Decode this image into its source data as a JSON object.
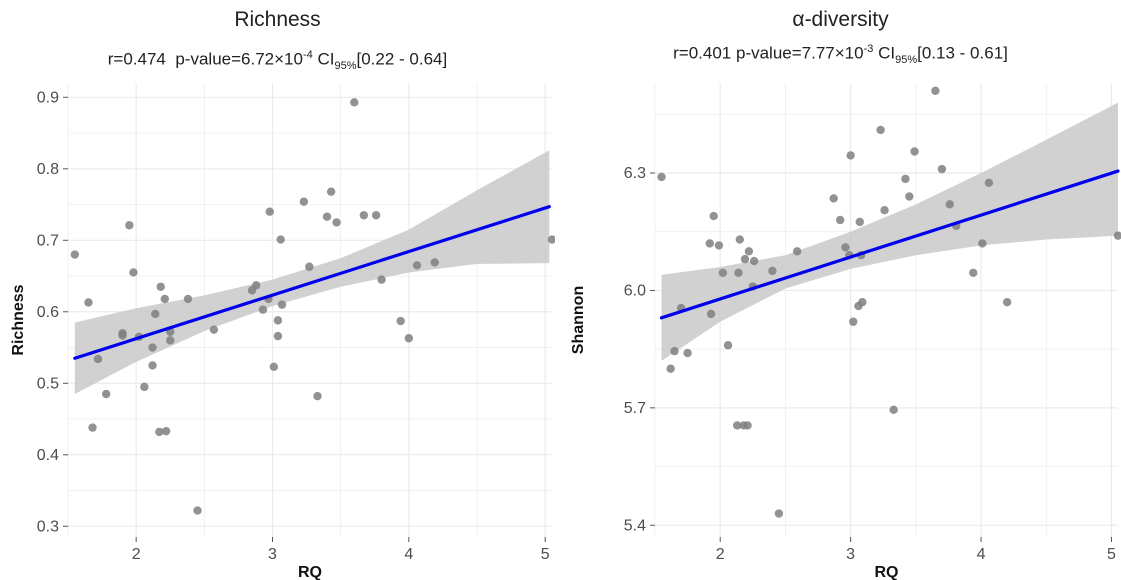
{
  "chart_data": [
    {
      "type": "scatter",
      "title": "Richness",
      "stats": {
        "r": "r=0.474",
        "p_label": "p-value=6.72×10",
        "p_exp": "-4",
        "ci_label": "CI",
        "ci_sub": "95%",
        "ci_range": "[0.22 - 0.64]"
      },
      "xlabel": "RQ",
      "ylabel": "Richness",
      "xlim": [
        1.5,
        5.05
      ],
      "ylim": [
        0.285,
        0.92
      ],
      "xticks": [
        2,
        3,
        4,
        5
      ],
      "xtick_labels": [
        "2",
        "3",
        "4",
        "5"
      ],
      "yticks": [
        0.3,
        0.4,
        0.5,
        0.6,
        0.7,
        0.8,
        0.9
      ],
      "ytick_labels": [
        "0.3",
        "0.4",
        "0.5",
        "0.6",
        "0.7",
        "0.8",
        "0.9"
      ],
      "grid": true,
      "points": [
        [
          1.55,
          0.68
        ],
        [
          1.65,
          0.613
        ],
        [
          1.68,
          0.438
        ],
        [
          1.72,
          0.534
        ],
        [
          1.78,
          0.485
        ],
        [
          1.9,
          0.567
        ],
        [
          1.9,
          0.57
        ],
        [
          1.95,
          0.721
        ],
        [
          1.98,
          0.655
        ],
        [
          2.02,
          0.565
        ],
        [
          2.06,
          0.495
        ],
        [
          2.12,
          0.55
        ],
        [
          2.12,
          0.525
        ],
        [
          2.14,
          0.597
        ],
        [
          2.17,
          0.432
        ],
        [
          2.18,
          0.635
        ],
        [
          2.21,
          0.618
        ],
        [
          2.22,
          0.433
        ],
        [
          2.25,
          0.572
        ],
        [
          2.25,
          0.56
        ],
        [
          2.38,
          0.618
        ],
        [
          2.45,
          0.322
        ],
        [
          2.57,
          0.575
        ],
        [
          2.85,
          0.63
        ],
        [
          2.88,
          0.637
        ],
        [
          2.93,
          0.603
        ],
        [
          2.97,
          0.618
        ],
        [
          2.98,
          0.74
        ],
        [
          3.01,
          0.523
        ],
        [
          3.04,
          0.588
        ],
        [
          3.04,
          0.566
        ],
        [
          3.06,
          0.701
        ],
        [
          3.07,
          0.61
        ],
        [
          3.23,
          0.754
        ],
        [
          3.27,
          0.663
        ],
        [
          3.33,
          0.482
        ],
        [
          3.4,
          0.733
        ],
        [
          3.43,
          0.768
        ],
        [
          3.47,
          0.725
        ],
        [
          3.6,
          0.893
        ],
        [
          3.67,
          0.735
        ],
        [
          3.76,
          0.735
        ],
        [
          3.8,
          0.645
        ],
        [
          3.94,
          0.587
        ],
        [
          4.0,
          0.563
        ],
        [
          4.06,
          0.665
        ],
        [
          4.19,
          0.669
        ],
        [
          5.05,
          0.701
        ]
      ],
      "fit": {
        "x": [
          1.55,
          5.03
        ],
        "y": [
          0.535,
          0.747
        ]
      },
      "ci_band": {
        "x": [
          1.55,
          2.0,
          2.5,
          3.0,
          3.5,
          4.0,
          4.5,
          5.03
        ],
        "lower": [
          0.485,
          0.53,
          0.573,
          0.608,
          0.635,
          0.655,
          0.667,
          0.668
        ],
        "upper": [
          0.585,
          0.605,
          0.623,
          0.645,
          0.675,
          0.715,
          0.77,
          0.826
        ]
      }
    },
    {
      "type": "scatter",
      "title": "α-diversity",
      "stats": {
        "r": "r=0.401",
        "p_label": "p-value=7.77×10",
        "p_exp": "-3",
        "ci_label": "CI",
        "ci_sub": "95%",
        "ci_range": "[0.13 - 0.61]"
      },
      "xlabel": "RQ",
      "ylabel": "Shannon",
      "xlim": [
        1.5,
        5.05
      ],
      "ylim": [
        5.37,
        6.53
      ],
      "xticks": [
        2,
        3,
        4,
        5
      ],
      "xtick_labels": [
        "2",
        "3",
        "4",
        "5"
      ],
      "yticks": [
        5.4,
        5.7,
        6.0,
        6.3
      ],
      "ytick_labels": [
        "5.4",
        "5.7",
        "6.0",
        "6.3"
      ],
      "grid": true,
      "points": [
        [
          1.55,
          6.29
        ],
        [
          1.62,
          5.8
        ],
        [
          1.65,
          5.845
        ],
        [
          1.7,
          5.955
        ],
        [
          1.75,
          5.84
        ],
        [
          1.92,
          6.12
        ],
        [
          1.93,
          5.94
        ],
        [
          1.95,
          6.19
        ],
        [
          1.99,
          6.115
        ],
        [
          2.02,
          6.045
        ],
        [
          2.06,
          5.86
        ],
        [
          2.13,
          5.655
        ],
        [
          2.14,
          6.045
        ],
        [
          2.15,
          6.13
        ],
        [
          2.18,
          5.655
        ],
        [
          2.19,
          6.08
        ],
        [
          2.21,
          5.655
        ],
        [
          2.22,
          6.1
        ],
        [
          2.25,
          6.01
        ],
        [
          2.26,
          6.075
        ],
        [
          2.4,
          6.05
        ],
        [
          2.45,
          5.43
        ],
        [
          2.59,
          6.1
        ],
        [
          2.87,
          6.235
        ],
        [
          2.92,
          6.18
        ],
        [
          2.96,
          6.11
        ],
        [
          2.99,
          6.09
        ],
        [
          3.0,
          6.345
        ],
        [
          3.02,
          5.92
        ],
        [
          3.06,
          5.96
        ],
        [
          3.07,
          6.175
        ],
        [
          3.08,
          6.09
        ],
        [
          3.09,
          5.97
        ],
        [
          3.23,
          6.41
        ],
        [
          3.26,
          6.205
        ],
        [
          3.33,
          5.695
        ],
        [
          3.42,
          6.285
        ],
        [
          3.45,
          6.24
        ],
        [
          3.49,
          6.355
        ],
        [
          3.65,
          6.51
        ],
        [
          3.7,
          6.31
        ],
        [
          3.76,
          6.22
        ],
        [
          3.81,
          6.165
        ],
        [
          3.94,
          6.045
        ],
        [
          4.01,
          6.12
        ],
        [
          4.06,
          6.275
        ],
        [
          4.2,
          5.97
        ],
        [
          5.05,
          6.14
        ]
      ],
      "fit": {
        "x": [
          1.55,
          5.05
        ],
        "y": [
          5.93,
          6.305
        ]
      },
      "ci_band": {
        "x": [
          1.55,
          2.0,
          2.5,
          3.0,
          3.5,
          4.0,
          4.5,
          5.05
        ],
        "lower": [
          5.82,
          5.92,
          6.005,
          6.055,
          6.09,
          6.115,
          6.13,
          6.14
        ],
        "upper": [
          6.04,
          6.06,
          6.09,
          6.15,
          6.22,
          6.3,
          6.385,
          6.48
        ]
      }
    }
  ],
  "colors": {
    "point": "#7f7f7f",
    "fit": "#0000ee",
    "band": "#c9c9c9",
    "grid": "#ebebeb"
  }
}
